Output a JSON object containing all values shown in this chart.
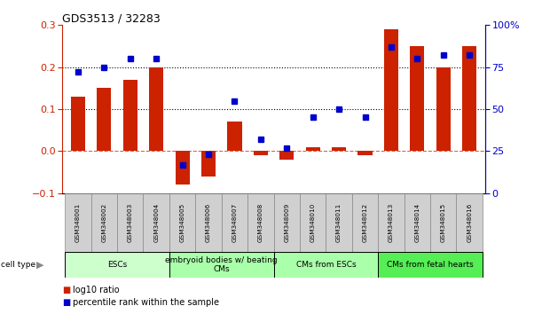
{
  "title": "GDS3513 / 32283",
  "samples": [
    "GSM348001",
    "GSM348002",
    "GSM348003",
    "GSM348004",
    "GSM348005",
    "GSM348006",
    "GSM348007",
    "GSM348008",
    "GSM348009",
    "GSM348010",
    "GSM348011",
    "GSM348012",
    "GSM348013",
    "GSM348014",
    "GSM348015",
    "GSM348016"
  ],
  "log10_ratio": [
    0.13,
    0.15,
    0.17,
    0.2,
    -0.08,
    -0.06,
    0.07,
    -0.01,
    -0.02,
    0.01,
    0.01,
    -0.01,
    0.29,
    0.25,
    0.2,
    0.25
  ],
  "percentile_rank": [
    72,
    75,
    80,
    80,
    17,
    23,
    55,
    32,
    27,
    45,
    50,
    45,
    87,
    80,
    82,
    82
  ],
  "bar_color": "#cc2200",
  "dot_color": "#0000cc",
  "ylim_left": [
    -0.1,
    0.3
  ],
  "ylim_right": [
    0,
    100
  ],
  "yticks_left": [
    -0.1,
    0.0,
    0.1,
    0.2,
    0.3
  ],
  "yticks_right": [
    0,
    25,
    50,
    75,
    100
  ],
  "ytick_labels_right": [
    "0",
    "25",
    "50",
    "75",
    "100%"
  ],
  "grid_values": [
    0.1,
    0.2
  ],
  "zero_line": 0.0,
  "cell_groups": [
    {
      "label": "ESCs",
      "start": 0,
      "end": 3,
      "color": "#ccffcc"
    },
    {
      "label": "embryoid bodies w/ beating\nCMs",
      "start": 4,
      "end": 7,
      "color": "#aaffaa"
    },
    {
      "label": "CMs from ESCs",
      "start": 8,
      "end": 11,
      "color": "#aaffaa"
    },
    {
      "label": "CMs from fetal hearts",
      "start": 12,
      "end": 15,
      "color": "#55ee55"
    }
  ],
  "cell_type_label": "cell type",
  "sample_box_color": "#d0d0d0",
  "sample_box_edge": "#888888",
  "legend_items": [
    {
      "label": "log10 ratio",
      "color": "#cc2200"
    },
    {
      "label": "percentile rank within the sample",
      "color": "#0000cc"
    }
  ]
}
